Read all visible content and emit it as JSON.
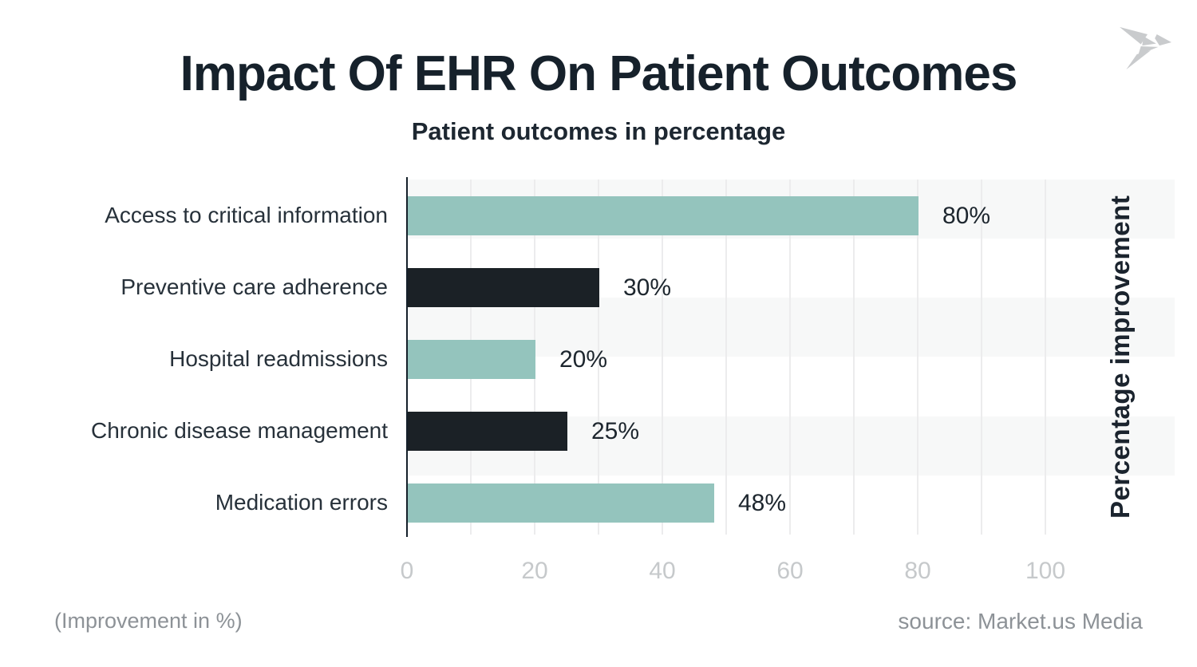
{
  "title": "Impact Of EHR On Patient Outcomes",
  "subtitle": "Patient outcomes in percentage",
  "logo": {
    "name": "origami-bird-logo",
    "color": "#c9cbcd"
  },
  "footer": {
    "note": "(Improvement in %)",
    "source": "source: Market.us Media"
  },
  "colors": {
    "teal_bar": "#94c4bd",
    "dark_bar": "#1b2126",
    "stripe_light": "#f7f8f8",
    "stripe_white": "#ffffff",
    "gridline": "#ececed",
    "axis_line": "#15202a",
    "tick_text": "#c6c9cb",
    "category_text": "#27313a",
    "value_text": "#1d262e",
    "title_text": "#16212b",
    "footer_text": "#8d9297"
  },
  "chart_data": {
    "type": "bar",
    "orientation": "horizontal",
    "title": "Impact Of EHR On Patient Outcomes",
    "subtitle": "Patient outcomes in percentage",
    "categories": [
      "Access to critical information",
      "Preventive care adherence",
      "Hospital readmissions",
      "Chronic disease management",
      "Medication errors"
    ],
    "values": [
      80,
      30,
      20,
      25,
      48
    ],
    "value_labels": [
      "80%",
      "30%",
      "20%",
      "25%",
      "48%"
    ],
    "bar_colors": [
      "#94c4bd",
      "#1b2126",
      "#94c4bd",
      "#1b2126",
      "#94c4bd"
    ],
    "xticks": [
      0,
      20,
      40,
      60,
      80,
      100
    ],
    "xlim": [
      0,
      120
    ],
    "xlabel": "",
    "ylabel_right": "Percentage improvement",
    "grid": "vertical gridlines every 10 units; horizontal alternating background stripes",
    "legend": "none"
  }
}
